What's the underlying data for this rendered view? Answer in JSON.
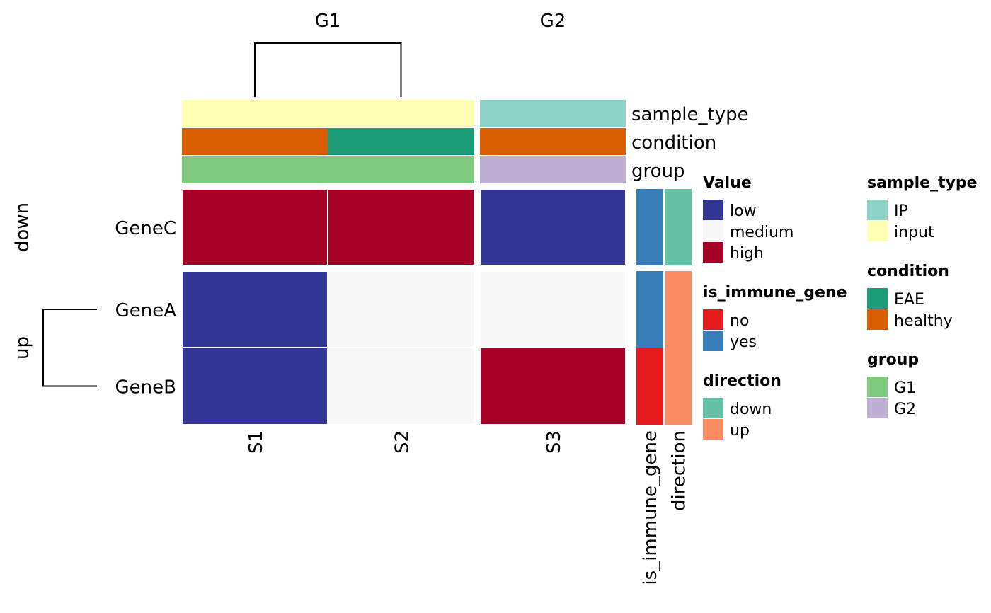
{
  "chart_data": {
    "type": "heatmap",
    "title": "",
    "columns": [
      "S1",
      "S2",
      "S3"
    ],
    "column_splits": [
      {
        "name": "G1",
        "columns": [
          "S1",
          "S2"
        ]
      },
      {
        "name": "G2",
        "columns": [
          "S3"
        ]
      }
    ],
    "row_splits": [
      {
        "name": "down",
        "rows": [
          "GeneC"
        ]
      },
      {
        "name": "up",
        "rows": [
          "GeneA",
          "GeneB"
        ]
      }
    ],
    "rows": [
      "GeneC",
      "GeneA",
      "GeneB"
    ],
    "values": [
      [
        "high",
        "high",
        "low"
      ],
      [
        "low",
        "medium",
        "medium"
      ],
      [
        "low",
        "medium",
        "high"
      ]
    ],
    "value_colors": {
      "low": "#313695",
      "medium": "#f7f7f7",
      "high": "#a50026"
    },
    "column_dendrogram": {
      "split": "G1",
      "leaves": [
        "S1",
        "S2"
      ]
    },
    "row_dendrogram": {
      "split": "up",
      "leaves": [
        "GeneA",
        "GeneB"
      ]
    },
    "column_annotations": [
      {
        "name": "sample_type",
        "values": [
          "input",
          "input",
          "IP"
        ]
      },
      {
        "name": "condition",
        "values": [
          "healthy",
          "EAE",
          "healthy"
        ]
      },
      {
        "name": "group",
        "values": [
          "G1",
          "G1",
          "G2"
        ]
      }
    ],
    "row_annotations": [
      {
        "name": "is_immune_gene",
        "values": [
          "yes",
          "yes",
          "no"
        ]
      },
      {
        "name": "direction",
        "values": [
          "down",
          "up",
          "up"
        ]
      }
    ],
    "legends": [
      {
        "title": "Value",
        "items": [
          {
            "label": "low",
            "color": "#313695"
          },
          {
            "label": "medium",
            "color": "#f7f7f7"
          },
          {
            "label": "high",
            "color": "#a50026"
          }
        ]
      },
      {
        "title": "is_immune_gene",
        "items": [
          {
            "label": "no",
            "color": "#e41a1c"
          },
          {
            "label": "yes",
            "color": "#377eb8"
          }
        ]
      },
      {
        "title": "direction",
        "items": [
          {
            "label": "down",
            "color": "#66c2a5"
          },
          {
            "label": "up",
            "color": "#fc8d62"
          }
        ]
      },
      {
        "title": "sample_type",
        "items": [
          {
            "label": "IP",
            "color": "#8dd3c7"
          },
          {
            "label": "input",
            "color": "#ffffb3"
          }
        ]
      },
      {
        "title": "condition",
        "items": [
          {
            "label": "EAE",
            "color": "#1b9e77"
          },
          {
            "label": "healthy",
            "color": "#d95f02"
          }
        ]
      },
      {
        "title": "group",
        "items": [
          {
            "label": "G1",
            "color": "#7fc97f"
          },
          {
            "label": "G2",
            "color": "#beaed4"
          }
        ]
      }
    ]
  }
}
